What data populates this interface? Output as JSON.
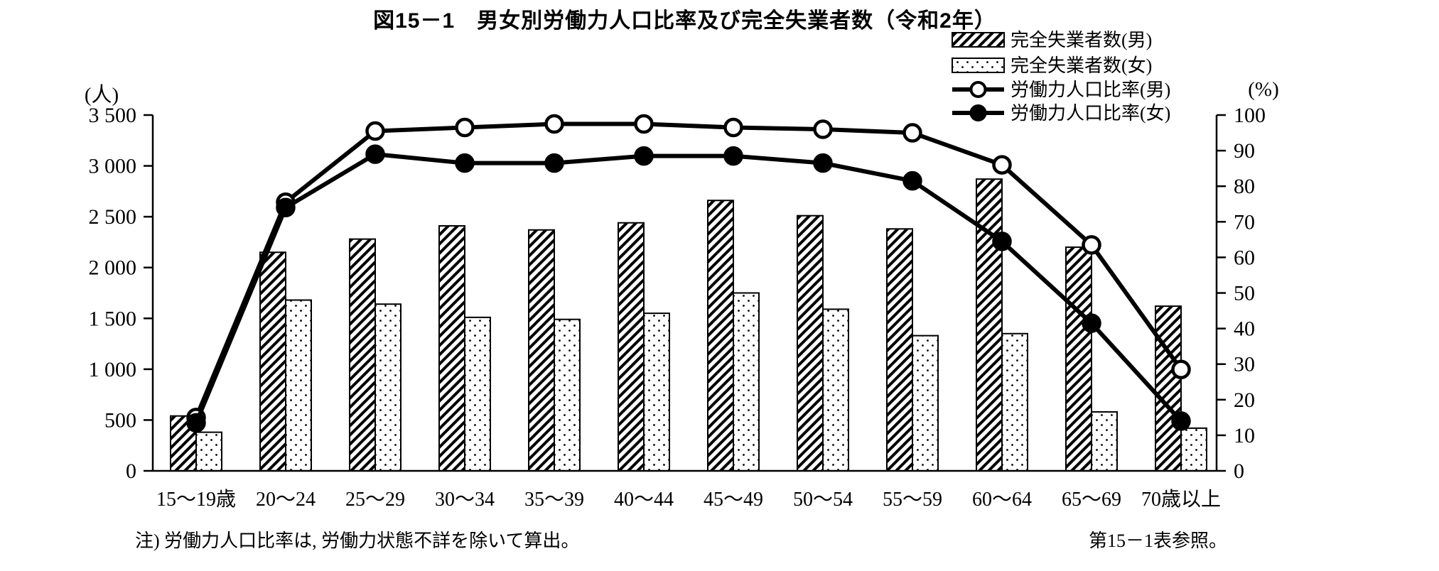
{
  "notes": {
    "left": "注) 労働力人口比率は, 労働力状態不詳を除いて算出。",
    "right": "第15－1表参照。"
  },
  "chart_data": {
    "type": "bar+line",
    "title": "図15－1　男女別労働力人口比率及び完全失業者数（令和2年）",
    "categories": [
      "15〜19歳",
      "20〜24",
      "25〜29",
      "30〜34",
      "35〜39",
      "40〜44",
      "45〜49",
      "50〜54",
      "55〜59",
      "60〜64",
      "65〜69",
      "70歳以上"
    ],
    "series": [
      {
        "name": "完全失業者数(男)",
        "type": "bar",
        "pattern": "hatch",
        "axis": "left",
        "values": [
          540,
          2150,
          2280,
          2410,
          2370,
          2440,
          2660,
          2510,
          2380,
          2870,
          2200,
          1620
        ]
      },
      {
        "name": "完全失業者数(女)",
        "type": "bar",
        "pattern": "dots",
        "axis": "left",
        "values": [
          380,
          1680,
          1640,
          1510,
          1490,
          1550,
          1750,
          1590,
          1330,
          1350,
          580,
          420
        ]
      },
      {
        "name": "労働力人口比率(男)",
        "type": "line",
        "marker": "open-circle",
        "axis": "right",
        "values": [
          15,
          75.5,
          95.5,
          96.5,
          97.5,
          97.5,
          96.5,
          96,
          95,
          86,
          63.5,
          28.5
        ]
      },
      {
        "name": "労働力人口比率(女)",
        "type": "line",
        "marker": "filled-circle",
        "axis": "right",
        "values": [
          13.5,
          74,
          89,
          86.5,
          86.5,
          88.5,
          88.5,
          86.5,
          81.5,
          64.5,
          41.5,
          14
        ]
      }
    ],
    "left_axis": {
      "unit": "(人)",
      "min": 0,
      "max": 3500,
      "tick_step": 500,
      "tick_labels": [
        "0",
        "500",
        "1 000",
        "1 500",
        "2 000",
        "2 500",
        "3 000",
        "3 500"
      ]
    },
    "right_axis": {
      "unit": "(%)",
      "min": 0,
      "max": 100,
      "tick_step": 10,
      "tick_labels": [
        "0",
        "10",
        "20",
        "30",
        "40",
        "50",
        "60",
        "70",
        "80",
        "90",
        "100"
      ]
    },
    "legend_position": "top-right",
    "grid": false,
    "colors": {
      "ink": "#000000",
      "background": "#ffffff"
    }
  }
}
